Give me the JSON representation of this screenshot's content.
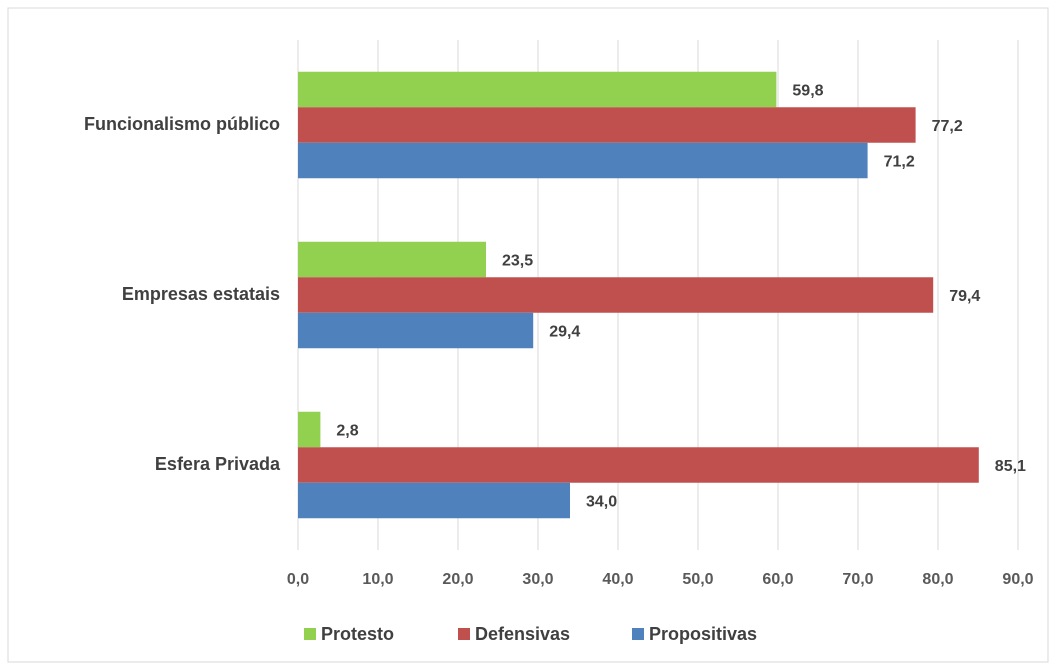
{
  "chart_data": {
    "type": "bar",
    "orientation": "horizontal",
    "categories": [
      "Funcionalismo público",
      "Empresas estatais",
      "Esfera Privada"
    ],
    "series": [
      {
        "name": "Protesto",
        "color": "#92d050",
        "values": [
          59.8,
          23.5,
          2.8
        ],
        "value_labels": [
          "59,8",
          "23,5",
          "2,8"
        ]
      },
      {
        "name": "Defensivas",
        "color": "#c0504d",
        "values": [
          77.2,
          79.4,
          85.1
        ],
        "value_labels": [
          "77,2",
          "79,4",
          "85,1"
        ]
      },
      {
        "name": "Propositivas",
        "color": "#4f81bd",
        "values": [
          71.2,
          29.4,
          34.0
        ],
        "value_labels": [
          "71,2",
          "29,4",
          "34,0"
        ]
      }
    ],
    "xlim": [
      0,
      90
    ],
    "xticks": [
      {
        "value": 0,
        "label": "0,0"
      },
      {
        "value": 10,
        "label": "10,0"
      },
      {
        "value": 20,
        "label": "20,0"
      },
      {
        "value": 30,
        "label": "30,0"
      },
      {
        "value": 40,
        "label": "40,0"
      },
      {
        "value": 50,
        "label": "50,0"
      },
      {
        "value": 60,
        "label": "60,0"
      },
      {
        "value": 70,
        "label": "70,0"
      },
      {
        "value": 80,
        "label": "80,0"
      },
      {
        "value": 90,
        "label": "90,0"
      }
    ],
    "grid": true,
    "legend": "bottom"
  }
}
